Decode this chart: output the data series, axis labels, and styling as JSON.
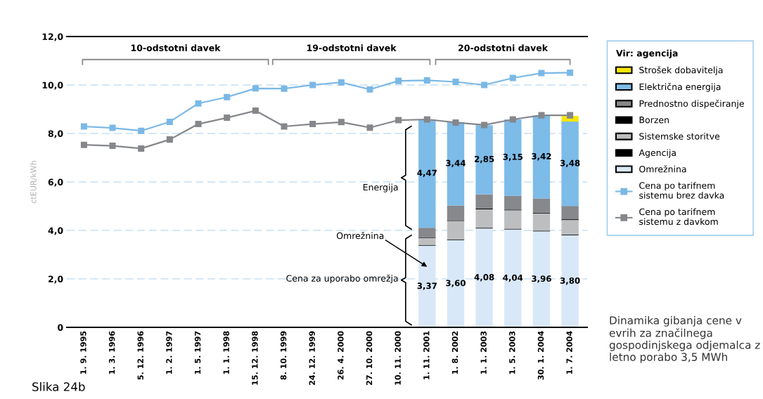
{
  "chart_data": {
    "type": "bar",
    "ylabel": "ctEUR/kWh",
    "legend_title": "Vir: agencija",
    "legend": "right",
    "grid": "y",
    "stacked": true,
    "marker": "square",
    "line_style": "solid",
    "categories": [
      "1. 9. 1995",
      "1. 3. 1996",
      "5. 12. 1996",
      "1. 2. 1997",
      "1. 5. 1997",
      "1. 1. 1998",
      "15. 12. 1998",
      "8. 10. 1999",
      "24. 12. 1999",
      "26. 4. 2000",
      "27. 10. 2000",
      "10. 11. 2000",
      "1. 11. 2001",
      "1. 8. 2002",
      "1. 1. 2003",
      "1. 5. 2003",
      "30. 1. 2004",
      "1. 7. 2004"
    ],
    "ylim": [
      0,
      12
    ],
    "yticks": [
      0,
      {
        "value": 2,
        "label": "2,0"
      },
      {
        "value": 4,
        "label": "4,0"
      },
      {
        "value": 6,
        "label": "6,0"
      },
      {
        "value": 8,
        "label": "8,0"
      },
      {
        "value": 10,
        "label": "10,0"
      },
      {
        "value": 12,
        "label": "12,0"
      }
    ],
    "series": [
      {
        "name": "Omrežnina",
        "color": "#d9e8f8",
        "values": [
          null,
          null,
          null,
          null,
          null,
          null,
          null,
          null,
          null,
          null,
          null,
          null,
          3.37,
          3.6,
          4.08,
          4.04,
          3.96,
          3.8
        ],
        "value_labels": [
          null,
          null,
          null,
          null,
          null,
          null,
          null,
          null,
          null,
          null,
          null,
          null,
          "3,37",
          "3,60",
          "4,08",
          "4,04",
          "3,96",
          "3,80"
        ]
      },
      {
        "name": "Agencija",
        "color": "#000000",
        "values": [
          null,
          null,
          null,
          null,
          null,
          null,
          null,
          null,
          null,
          null,
          null,
          null,
          0.03,
          0.03,
          0.03,
          0.03,
          0.03,
          0.03
        ]
      },
      {
        "name": "Sistemske storitve",
        "color": "#bcbec0",
        "values": [
          null,
          null,
          null,
          null,
          null,
          null,
          null,
          null,
          null,
          null,
          null,
          null,
          0.29,
          0.76,
          0.76,
          0.76,
          0.71,
          0.6
        ]
      },
      {
        "name": "Borzen",
        "color": "#000000",
        "values": [
          null,
          null,
          null,
          null,
          null,
          null,
          null,
          null,
          null,
          null,
          null,
          null,
          0.03,
          0.03,
          0.03,
          0.03,
          0.03,
          0.03
        ]
      },
      {
        "name": "Prednostno dispečiranje",
        "color": "#86888c",
        "values": [
          null,
          null,
          null,
          null,
          null,
          null,
          null,
          null,
          null,
          null,
          null,
          null,
          0.39,
          0.61,
          0.59,
          0.57,
          0.59,
          0.55
        ]
      },
      {
        "name": "Električna energija",
        "color": "#7dbbe8",
        "values": [
          null,
          null,
          null,
          null,
          null,
          null,
          null,
          null,
          null,
          null,
          null,
          null,
          4.47,
          3.44,
          2.85,
          3.15,
          3.42,
          3.48
        ],
        "value_labels": [
          null,
          null,
          null,
          null,
          null,
          null,
          null,
          null,
          null,
          null,
          null,
          null,
          "4,47",
          "3,44",
          "2,85",
          "3,15",
          "3,42",
          "3,48"
        ]
      },
      {
        "name": "Strošek dobavitelja",
        "color": "#f7e600",
        "values": [
          null,
          null,
          null,
          null,
          null,
          null,
          null,
          null,
          null,
          null,
          null,
          null,
          null,
          null,
          null,
          null,
          null,
          0.23
        ]
      },
      {
        "name": "Cena po tarifnem\nsistemu brez davka",
        "type": "line",
        "color": "#7ab8e6",
        "values": [
          8.29,
          8.23,
          8.11,
          8.48,
          9.24,
          9.5,
          9.86,
          9.85,
          10.0,
          10.11,
          9.82,
          10.17,
          10.19,
          10.13,
          10.0,
          10.29,
          10.49,
          10.51
        ]
      },
      {
        "name": "Cena po tarifnem\nsistemu z davkom",
        "type": "line",
        "color": "#85878b",
        "values": [
          7.53,
          7.49,
          7.38,
          7.75,
          8.39,
          8.65,
          8.94,
          8.29,
          8.39,
          8.47,
          8.24,
          8.55,
          8.58,
          8.45,
          8.35,
          8.58,
          8.75,
          8.75
        ]
      }
    ],
    "annotations": [
      "10-odstotni davek",
      "19-odstotni davek",
      "20-odstotni davek",
      "Energija",
      "Omrežnina",
      "Cena za uporabo omrežja",
      "Slika 24b",
      "Dinamika gibanja cene v evrih za značilnega gospodinjskega odjemalca z letno porabo 3,5 MWh"
    ]
  }
}
